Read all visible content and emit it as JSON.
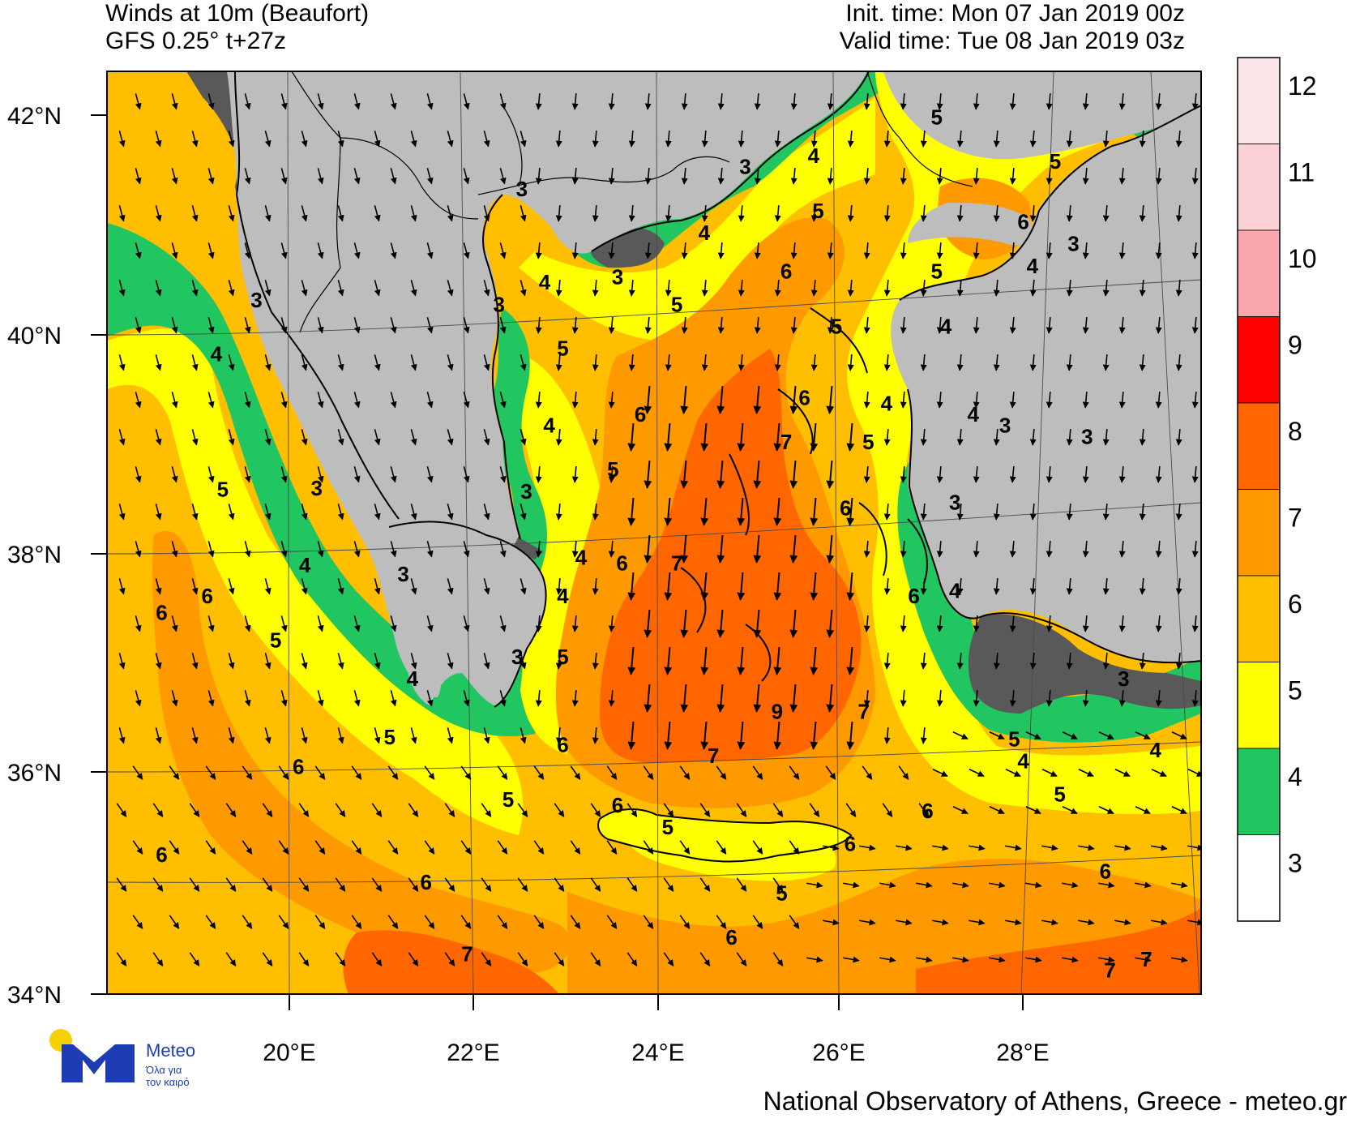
{
  "header": {
    "title_line1": "Winds at 10m (Beaufort)",
    "title_line2": "GFS 0.25° t+27z",
    "init_time": "Init. time: Mon 07 Jan 2019 00z",
    "valid_time": "Valid time: Tue 08 Jan 2019 03z"
  },
  "axes": {
    "lat_labels": [
      "42°N",
      "40°N",
      "38°N",
      "36°N",
      "34°N"
    ],
    "lon_labels": [
      "20°E",
      "22°E",
      "24°E",
      "26°E",
      "28°E"
    ]
  },
  "legend": {
    "levels": [
      {
        "label": "12",
        "color": "#fde6e9"
      },
      {
        "label": "11",
        "color": "#fbd1d5"
      },
      {
        "label": "10",
        "color": "#f9a6ac"
      },
      {
        "label": "9",
        "color": "#ff0000"
      },
      {
        "label": "8",
        "color": "#ff6600"
      },
      {
        "label": "7",
        "color": "#ff9900"
      },
      {
        "label": "6",
        "color": "#ffbe00"
      },
      {
        "label": "5",
        "color": "#ffff00"
      },
      {
        "label": "4",
        "color": "#22c660"
      },
      {
        "label": "3",
        "color": "#ffffff"
      }
    ]
  },
  "contour_labels": [
    {
      "t": "3",
      "lon": 19.64,
      "lat": 40.24
    },
    {
      "t": "4",
      "lon": 19.2,
      "lat": 39.75
    },
    {
      "t": "5",
      "lon": 19.27,
      "lat": 38.52
    },
    {
      "t": "3",
      "lon": 20.3,
      "lat": 38.53
    },
    {
      "t": "4",
      "lon": 20.17,
      "lat": 37.83
    },
    {
      "t": "6",
      "lon": 19.1,
      "lat": 37.55
    },
    {
      "t": "6",
      "lon": 18.6,
      "lat": 37.4
    },
    {
      "t": "5",
      "lon": 19.85,
      "lat": 37.15
    },
    {
      "t": "4",
      "lon": 21.35,
      "lat": 36.8
    },
    {
      "t": "3",
      "lon": 21.25,
      "lat": 37.75
    },
    {
      "t": "5",
      "lon": 21.1,
      "lat": 36.27
    },
    {
      "t": "6",
      "lon": 20.1,
      "lat": 36.0
    },
    {
      "t": "6",
      "lon": 18.6,
      "lat": 35.2
    },
    {
      "t": "6",
      "lon": 21.5,
      "lat": 34.95
    },
    {
      "t": "5",
      "lon": 22.4,
      "lat": 35.7
    },
    {
      "t": "7",
      "lon": 21.95,
      "lat": 34.3
    },
    {
      "t": "3",
      "lon": 22.5,
      "lat": 37.0
    },
    {
      "t": "5",
      "lon": 23.0,
      "lat": 37.0
    },
    {
      "t": "3",
      "lon": 22.6,
      "lat": 38.5
    },
    {
      "t": "3",
      "lon": 22.55,
      "lat": 41.25
    },
    {
      "t": "3",
      "lon": 22.3,
      "lat": 40.2
    },
    {
      "t": "4",
      "lon": 22.8,
      "lat": 40.4
    },
    {
      "t": "5",
      "lon": 23.0,
      "lat": 39.8
    },
    {
      "t": "4",
      "lon": 22.85,
      "lat": 39.1
    },
    {
      "t": "5",
      "lon": 23.55,
      "lat": 38.7
    },
    {
      "t": "4",
      "lon": 23.2,
      "lat": 37.9
    },
    {
      "t": "6",
      "lon": 23.65,
      "lat": 37.85
    },
    {
      "t": "4",
      "lon": 23.0,
      "lat": 37.55
    },
    {
      "t": "6",
      "lon": 23.85,
      "lat": 39.2
    },
    {
      "t": "3",
      "lon": 23.6,
      "lat": 40.45
    },
    {
      "t": "5",
      "lon": 24.25,
      "lat": 40.2
    },
    {
      "t": "4",
      "lon": 24.55,
      "lat": 40.85
    },
    {
      "t": "3",
      "lon": 25.0,
      "lat": 41.45
    },
    {
      "t": "4",
      "lon": 25.75,
      "lat": 41.55
    },
    {
      "t": "5",
      "lon": 25.8,
      "lat": 41.05
    },
    {
      "t": "6",
      "lon": 25.45,
      "lat": 40.5
    },
    {
      "t": "5",
      "lon": 26.0,
      "lat": 40.0
    },
    {
      "t": "6",
      "lon": 25.65,
      "lat": 39.35
    },
    {
      "t": "7",
      "lon": 25.45,
      "lat": 38.95
    },
    {
      "t": "7",
      "lon": 24.25,
      "lat": 37.85
    },
    {
      "t": "6",
      "lon": 26.1,
      "lat": 38.35
    },
    {
      "t": "4",
      "lon": 26.55,
      "lat": 39.3
    },
    {
      "t": "5",
      "lon": 26.35,
      "lat": 38.95
    },
    {
      "t": "4",
      "lon": 27.2,
      "lat": 40.0
    },
    {
      "t": "4",
      "lon": 27.5,
      "lat": 39.2
    },
    {
      "t": "3",
      "lon": 27.85,
      "lat": 39.1
    },
    {
      "t": "3",
      "lon": 28.75,
      "lat": 39.0
    },
    {
      "t": "3",
      "lon": 27.3,
      "lat": 38.4
    },
    {
      "t": "6",
      "lon": 26.85,
      "lat": 37.55
    },
    {
      "t": "4",
      "lon": 27.3,
      "lat": 37.6
    },
    {
      "t": "7",
      "lon": 26.3,
      "lat": 36.5
    },
    {
      "t": "9",
      "lon": 25.35,
      "lat": 36.5
    },
    {
      "t": "7",
      "lon": 24.65,
      "lat": 36.1
    },
    {
      "t": "6",
      "lon": 23.0,
      "lat": 36.2
    },
    {
      "t": "6",
      "lon": 23.6,
      "lat": 35.65
    },
    {
      "t": "5",
      "lon": 24.15,
      "lat": 35.45
    },
    {
      "t": "6",
      "lon": 26.15,
      "lat": 35.3
    },
    {
      "t": "5",
      "lon": 25.4,
      "lat": 34.85
    },
    {
      "t": "6",
      "lon": 24.85,
      "lat": 34.45
    },
    {
      "t": "5",
      "lon": 27.95,
      "lat": 36.25
    },
    {
      "t": "4",
      "lon": 28.05,
      "lat": 36.05
    },
    {
      "t": "4",
      "lon": 29.5,
      "lat": 36.15
    },
    {
      "t": "5",
      "lon": 28.45,
      "lat": 35.75
    },
    {
      "t": "3",
      "lon": 29.15,
      "lat": 36.8
    },
    {
      "t": "6",
      "lon": 28.95,
      "lat": 35.05
    },
    {
      "t": "6",
      "lon": 27.0,
      "lat": 35.6
    },
    {
      "t": "7",
      "lon": 29.0,
      "lat": 34.15
    },
    {
      "t": "7",
      "lon": 29.4,
      "lat": 34.25
    },
    {
      "t": "5",
      "lon": 27.1,
      "lat": 41.9
    },
    {
      "t": "5",
      "lon": 28.4,
      "lat": 41.5
    },
    {
      "t": "6",
      "lon": 28.05,
      "lat": 40.95
    },
    {
      "t": "5",
      "lon": 27.1,
      "lat": 40.5
    },
    {
      "t": "4",
      "lon": 28.15,
      "lat": 40.55
    },
    {
      "t": "3",
      "lon": 28.6,
      "lat": 40.75
    }
  ],
  "footer": {
    "logo_word": "Meteo",
    "logo_sub": "Όλα για\nτον καιρό",
    "credit": "National Observatory of Athens, Greece - meteo.gr"
  }
}
